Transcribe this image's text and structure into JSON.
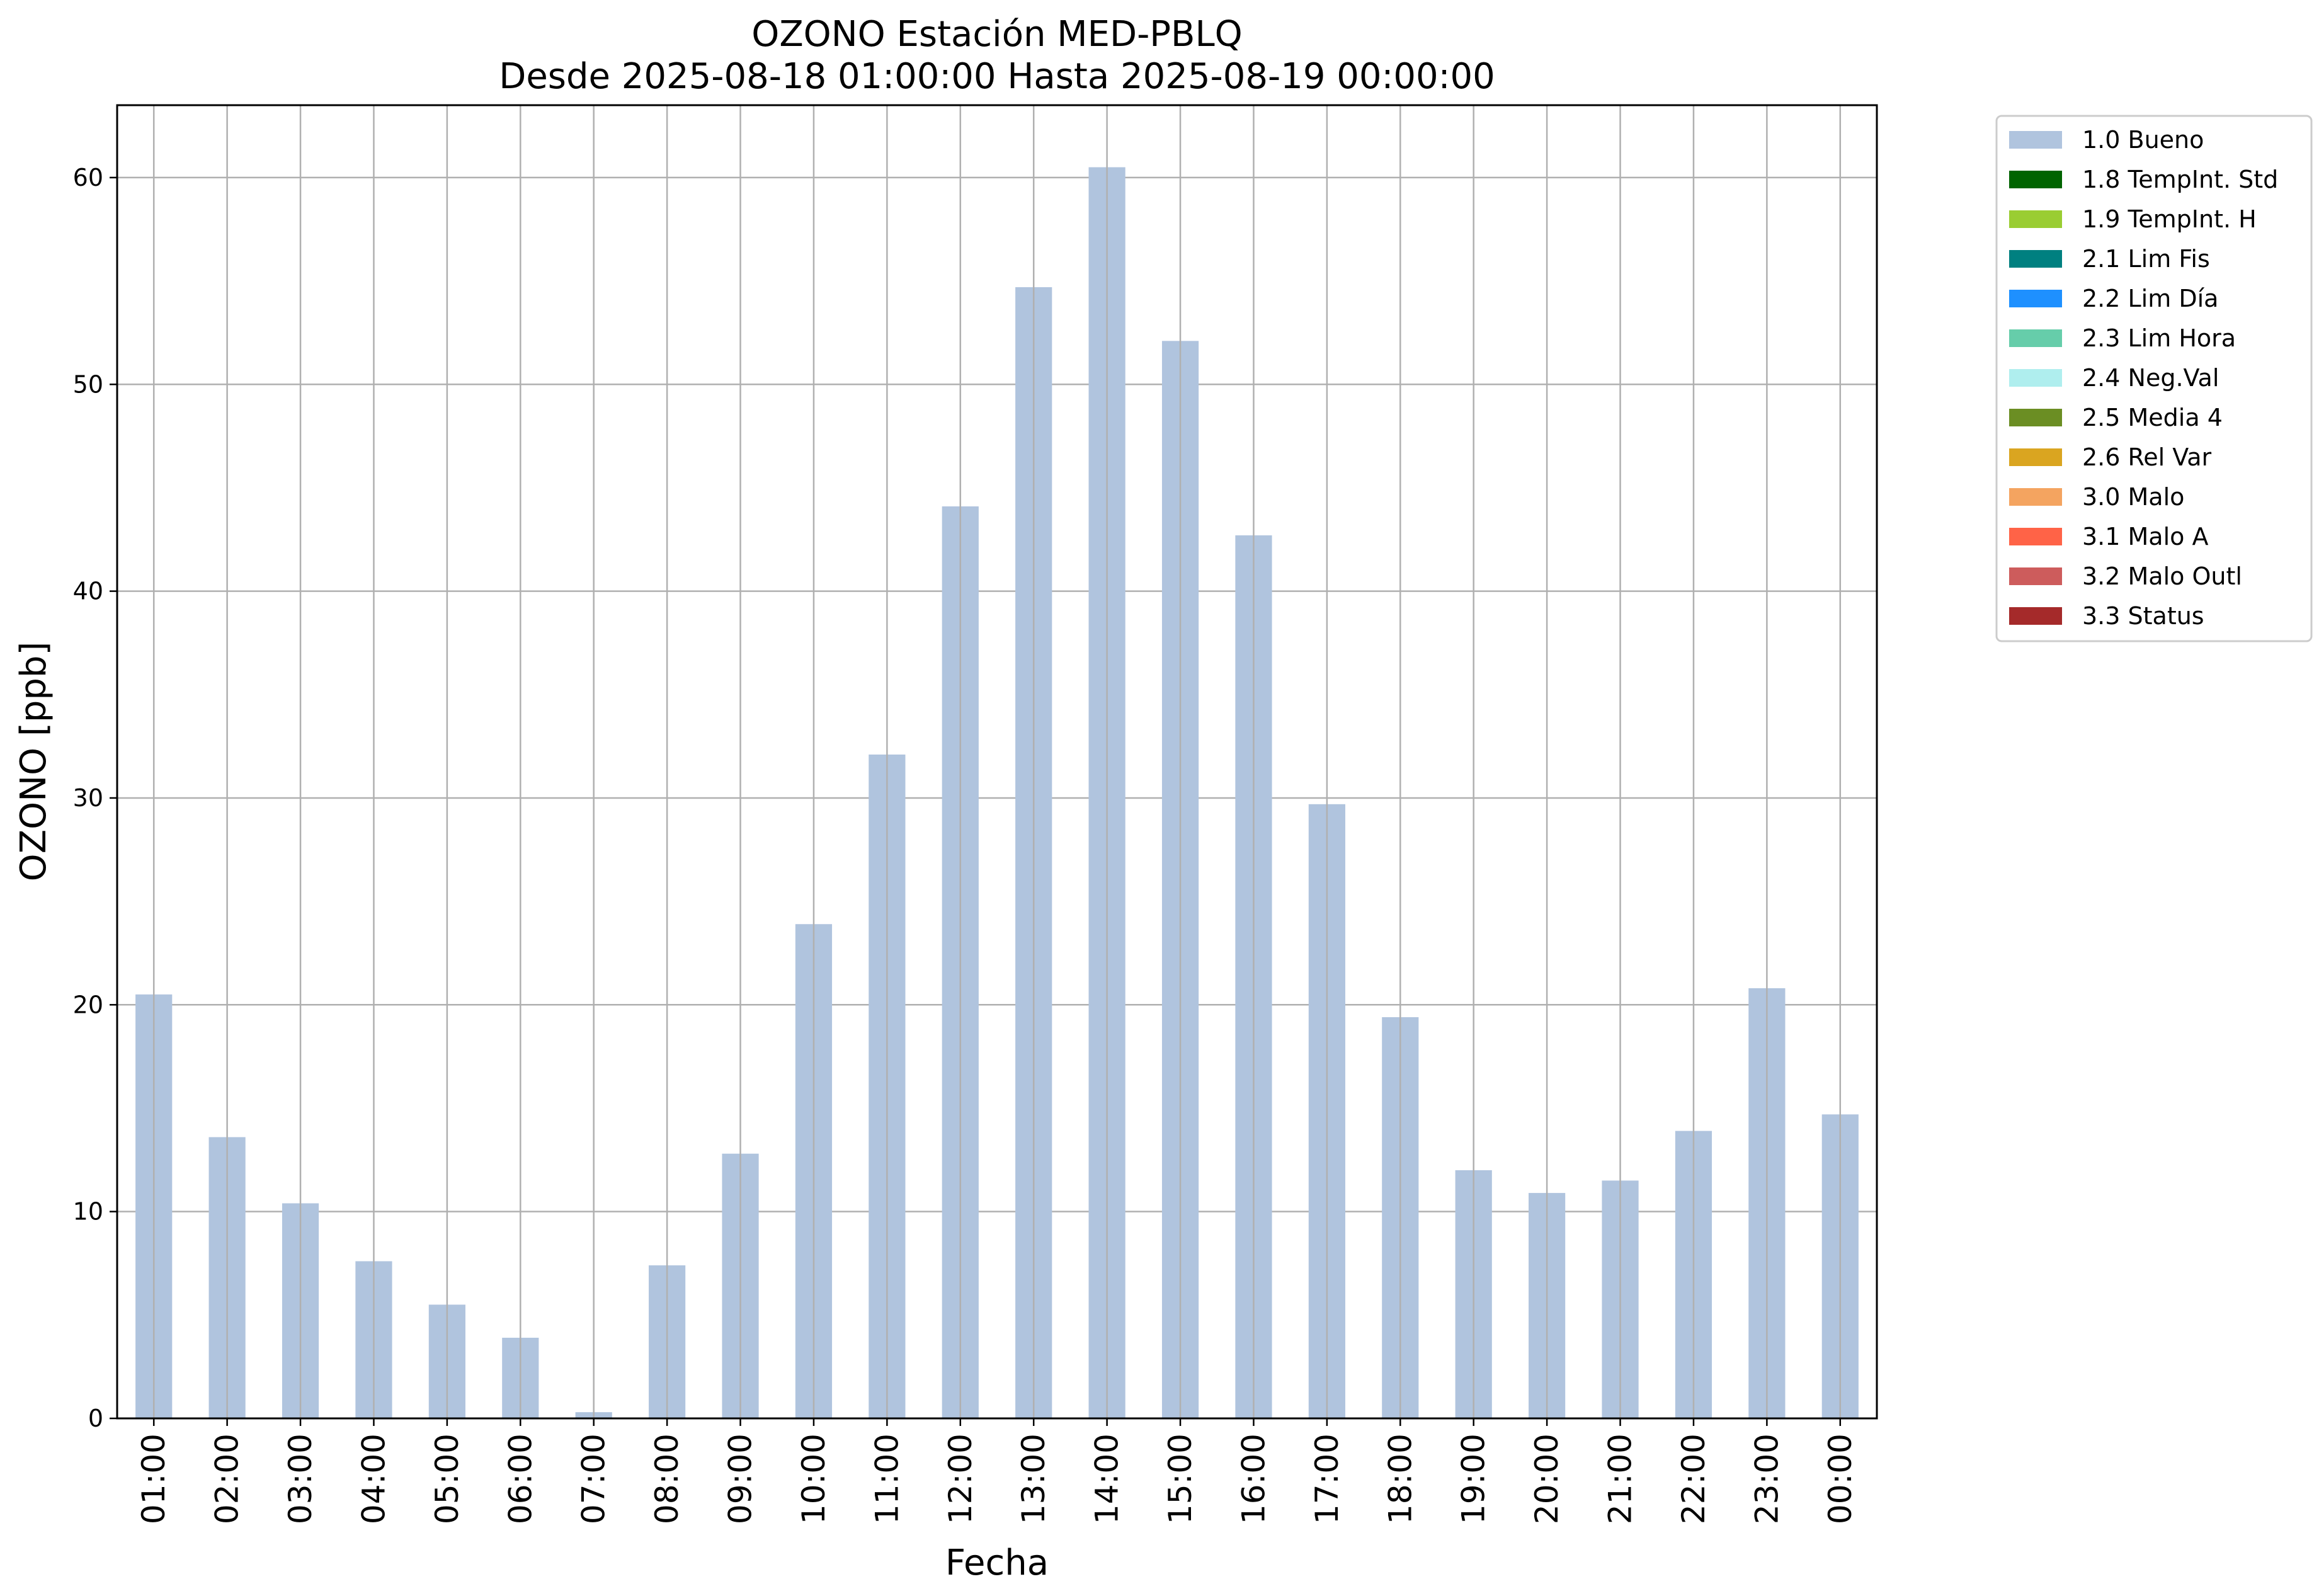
{
  "chart_data": {
    "type": "bar",
    "title": "OZONO Estación MED-PBLQ",
    "subtitle": "Desde 2025-08-18 01:00:00 Hasta 2025-08-19 00:00:00",
    "xlabel": "Fecha",
    "ylabel": "OZONO [ppb]",
    "ylim": [
      0,
      63.5
    ],
    "yticks": [
      0,
      10,
      20,
      30,
      40,
      50,
      60
    ],
    "grid": true,
    "legend_position": "outside top-right",
    "categories": [
      "01:00",
      "02:00",
      "03:00",
      "04:00",
      "05:00",
      "06:00",
      "07:00",
      "08:00",
      "09:00",
      "10:00",
      "11:00",
      "12:00",
      "13:00",
      "14:00",
      "15:00",
      "16:00",
      "17:00",
      "18:00",
      "19:00",
      "20:00",
      "21:00",
      "22:00",
      "23:00",
      "00:00"
    ],
    "series": [
      {
        "name": "1.0 Bueno",
        "color": "#b0c4de",
        "values": [
          20.5,
          13.6,
          10.4,
          7.6,
          5.5,
          3.9,
          0.3,
          7.4,
          12.8,
          23.9,
          32.1,
          44.1,
          54.7,
          60.5,
          52.1,
          42.7,
          29.7,
          19.4,
          12.0,
          10.9,
          11.5,
          13.9,
          20.8,
          14.7
        ]
      }
    ],
    "legend": [
      {
        "label": "1.0 Bueno",
        "color": "#b0c4de"
      },
      {
        "label": "1.8 TempInt. Std",
        "color": "#006400"
      },
      {
        "label": "1.9 TempInt. H",
        "color": "#9acd32"
      },
      {
        "label": "2.1 Lim Fis",
        "color": "#008080"
      },
      {
        "label": "2.2 Lim Día",
        "color": "#1e90ff"
      },
      {
        "label": "2.3 Lim Hora",
        "color": "#66cdaa"
      },
      {
        "label": "2.4 Neg.Val",
        "color": "#afeeee"
      },
      {
        "label": "2.5 Media 4",
        "color": "#6b8e23"
      },
      {
        "label": "2.6 Rel Var",
        "color": "#daa520"
      },
      {
        "label": "3.0 Malo",
        "color": "#f4a460"
      },
      {
        "label": "3.1 Malo A",
        "color": "#ff6347"
      },
      {
        "label": "3.2 Malo Outl",
        "color": "#cd5c5c"
      },
      {
        "label": "3.3 Status",
        "color": "#a52a2a"
      }
    ]
  }
}
